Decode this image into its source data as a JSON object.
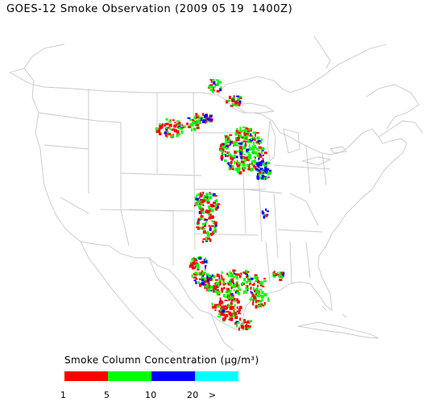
{
  "title": "GOES-12 Smoke Observation (2009 05 19  1400Z)",
  "legend": {
    "title": "Smoke Column Concentration (µg/m³)",
    "ticks": [
      "1",
      "5",
      "10",
      "20",
      ">"
    ],
    "bins": [
      {
        "range": "1-5",
        "color": "#ff0000"
      },
      {
        "range": "5-10",
        "color": "#00ff00"
      },
      {
        "range": "10-20",
        "color": "#0000ff"
      },
      {
        "range": ">20",
        "color": "#00ffff"
      }
    ]
  },
  "map": {
    "region": "United States",
    "base_color": "#cccccc",
    "smoke_colors": [
      "#ff0000",
      "#00ff00",
      "#0000ff"
    ]
  }
}
